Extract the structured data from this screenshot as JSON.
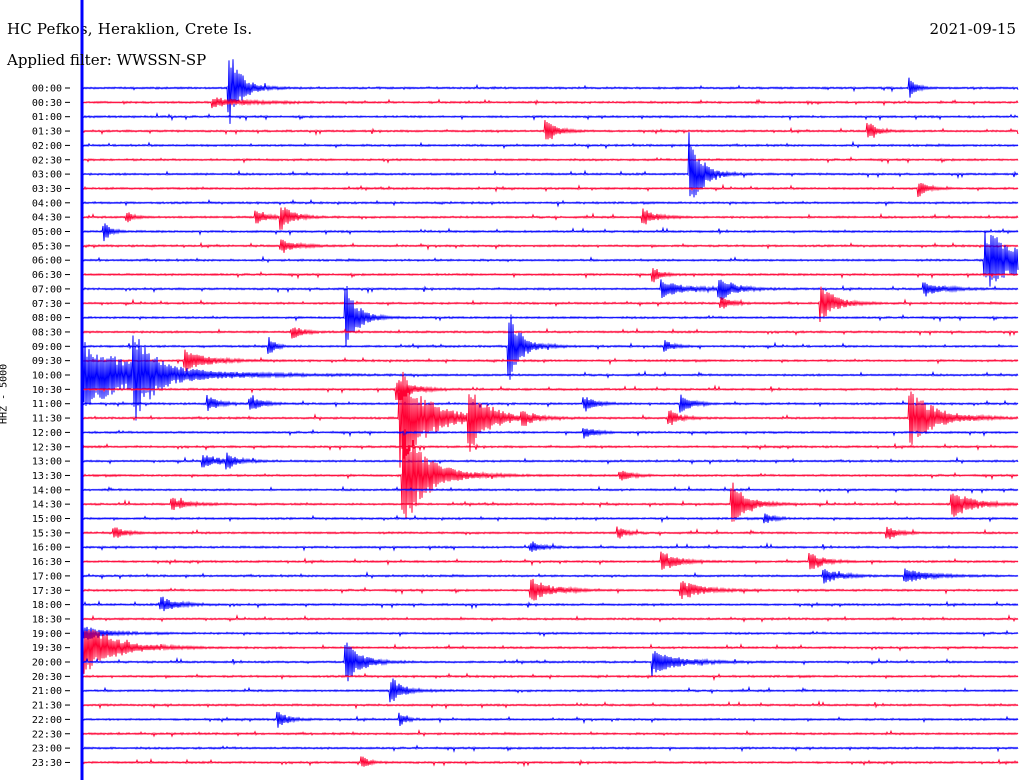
{
  "header": {
    "station": "HC Pefkos, Heraklion, Crete Is.",
    "date": "2021-09-15",
    "filter": "Applied filter: WWSSN-SP"
  },
  "chart_data": {
    "type": "line",
    "title": "HC Pefkos, Heraklion, Crete Is.",
    "subtitle": "Applied filter: WWSSN-SP",
    "ylabel": "HHZ - 5000",
    "colors": {
      "even_rows": "#0000ff",
      "odd_rows": "#ff0033",
      "cursor": "#0000ff"
    },
    "row_labels": [
      "00:00",
      "00:30",
      "01:00",
      "01:30",
      "02:00",
      "02:30",
      "03:00",
      "03:30",
      "04:00",
      "04:30",
      "05:00",
      "05:30",
      "06:00",
      "06:30",
      "07:00",
      "07:30",
      "08:00",
      "08:30",
      "09:00",
      "09:30",
      "10:00",
      "10:30",
      "11:00",
      "11:30",
      "12:00",
      "12:30",
      "13:00",
      "13:30",
      "14:00",
      "14:30",
      "15:00",
      "15:30",
      "16:00",
      "16:30",
      "17:00",
      "17:30",
      "18:00",
      "18:30",
      "19:00",
      "19:30",
      "20:00",
      "20:30",
      "21:00",
      "21:30",
      "22:00",
      "22:30",
      "23:00",
      "23:30"
    ],
    "events": [
      {
        "row": 0,
        "t": 0.157,
        "amp": 42,
        "dur": 0.012
      },
      {
        "row": 0,
        "t": 0.885,
        "amp": 10,
        "dur": 0.006
      },
      {
        "row": 1,
        "t": 0.14,
        "amp": 5,
        "dur": 0.03
      },
      {
        "row": 3,
        "t": 0.496,
        "amp": 14,
        "dur": 0.01
      },
      {
        "row": 3,
        "t": 0.84,
        "amp": 10,
        "dur": 0.008
      },
      {
        "row": 6,
        "t": 0.65,
        "amp": 42,
        "dur": 0.012
      },
      {
        "row": 7,
        "t": 0.895,
        "amp": 8,
        "dur": 0.008
      },
      {
        "row": 9,
        "t": 0.048,
        "amp": 6,
        "dur": 0.006
      },
      {
        "row": 9,
        "t": 0.186,
        "amp": 9,
        "dur": 0.01
      },
      {
        "row": 9,
        "t": 0.213,
        "amp": 12,
        "dur": 0.012
      },
      {
        "row": 9,
        "t": 0.6,
        "amp": 8,
        "dur": 0.012
      },
      {
        "row": 10,
        "t": 0.024,
        "amp": 10,
        "dur": 0.006
      },
      {
        "row": 11,
        "t": 0.213,
        "amp": 6,
        "dur": 0.015
      },
      {
        "row": 12,
        "t": 0.965,
        "amp": 30,
        "dur": 0.045
      },
      {
        "row": 13,
        "t": 0.61,
        "amp": 8,
        "dur": 0.008
      },
      {
        "row": 14,
        "t": 0.62,
        "amp": 10,
        "dur": 0.02
      },
      {
        "row": 14,
        "t": 0.681,
        "amp": 12,
        "dur": 0.015
      },
      {
        "row": 14,
        "t": 0.9,
        "amp": 6,
        "dur": 0.02
      },
      {
        "row": 15,
        "t": 0.683,
        "amp": 6,
        "dur": 0.01
      },
      {
        "row": 15,
        "t": 0.79,
        "amp": 18,
        "dur": 0.015
      },
      {
        "row": 16,
        "t": 0.282,
        "amp": 34,
        "dur": 0.012
      },
      {
        "row": 17,
        "t": 0.226,
        "amp": 6,
        "dur": 0.01
      },
      {
        "row": 18,
        "t": 0.457,
        "amp": 36,
        "dur": 0.012
      },
      {
        "row": 18,
        "t": 0.2,
        "amp": 10,
        "dur": 0.006
      },
      {
        "row": 18,
        "t": 0.623,
        "amp": 6,
        "dur": 0.008
      },
      {
        "row": 19,
        "t": 0.11,
        "amp": 12,
        "dur": 0.02
      },
      {
        "row": 20,
        "t": 0.0,
        "amp": 36,
        "dur": 0.06
      },
      {
        "row": 20,
        "t": 0.056,
        "amp": 40,
        "dur": 0.015
      },
      {
        "row": 21,
        "t": 0.337,
        "amp": 12,
        "dur": 0.015
      },
      {
        "row": 22,
        "t": 0.135,
        "amp": 8,
        "dur": 0.01
      },
      {
        "row": 22,
        "t": 0.18,
        "amp": 8,
        "dur": 0.01
      },
      {
        "row": 22,
        "t": 0.537,
        "amp": 8,
        "dur": 0.01
      },
      {
        "row": 22,
        "t": 0.64,
        "amp": 10,
        "dur": 0.01
      },
      {
        "row": 23,
        "t": 0.34,
        "amp": 50,
        "dur": 0.03
      },
      {
        "row": 23,
        "t": 0.414,
        "amp": 30,
        "dur": 0.02
      },
      {
        "row": 23,
        "t": 0.47,
        "amp": 8,
        "dur": 0.01
      },
      {
        "row": 23,
        "t": 0.628,
        "amp": 8,
        "dur": 0.01
      },
      {
        "row": 23,
        "t": 0.885,
        "amp": 30,
        "dur": 0.025
      },
      {
        "row": 24,
        "t": 0.537,
        "amp": 6,
        "dur": 0.01
      },
      {
        "row": 26,
        "t": 0.13,
        "amp": 6,
        "dur": 0.02
      },
      {
        "row": 26,
        "t": 0.155,
        "amp": 8,
        "dur": 0.008
      },
      {
        "row": 27,
        "t": 0.343,
        "amp": 55,
        "dur": 0.025
      },
      {
        "row": 27,
        "t": 0.575,
        "amp": 6,
        "dur": 0.01
      },
      {
        "row": 29,
        "t": 0.097,
        "amp": 6,
        "dur": 0.015
      },
      {
        "row": 29,
        "t": 0.695,
        "amp": 22,
        "dur": 0.015
      },
      {
        "row": 29,
        "t": 0.93,
        "amp": 14,
        "dur": 0.02
      },
      {
        "row": 30,
        "t": 0.73,
        "amp": 6,
        "dur": 0.008
      },
      {
        "row": 31,
        "t": 0.035,
        "amp": 6,
        "dur": 0.01
      },
      {
        "row": 31,
        "t": 0.573,
        "amp": 6,
        "dur": 0.008
      },
      {
        "row": 31,
        "t": 0.86,
        "amp": 8,
        "dur": 0.01
      },
      {
        "row": 32,
        "t": 0.48,
        "amp": 6,
        "dur": 0.01
      },
      {
        "row": 33,
        "t": 0.62,
        "amp": 10,
        "dur": 0.015
      },
      {
        "row": 33,
        "t": 0.778,
        "amp": 10,
        "dur": 0.012
      },
      {
        "row": 34,
        "t": 0.793,
        "amp": 8,
        "dur": 0.015
      },
      {
        "row": 34,
        "t": 0.88,
        "amp": 8,
        "dur": 0.02
      },
      {
        "row": 35,
        "t": 0.48,
        "amp": 12,
        "dur": 0.02
      },
      {
        "row": 35,
        "t": 0.64,
        "amp": 10,
        "dur": 0.02
      },
      {
        "row": 36,
        "t": 0.085,
        "amp": 8,
        "dur": 0.015
      },
      {
        "row": 38,
        "t": 0.0,
        "amp": 8,
        "dur": 0.02
      },
      {
        "row": 39,
        "t": 0.0,
        "amp": 28,
        "dur": 0.03
      },
      {
        "row": 40,
        "t": 0.282,
        "amp": 22,
        "dur": 0.015
      },
      {
        "row": 40,
        "t": 0.61,
        "amp": 12,
        "dur": 0.025
      },
      {
        "row": 42,
        "t": 0.33,
        "amp": 14,
        "dur": 0.012
      },
      {
        "row": 44,
        "t": 0.21,
        "amp": 10,
        "dur": 0.008
      },
      {
        "row": 44,
        "t": 0.34,
        "amp": 6,
        "dur": 0.006
      },
      {
        "row": 47,
        "t": 0.3,
        "amp": 6,
        "dur": 0.006
      }
    ]
  }
}
